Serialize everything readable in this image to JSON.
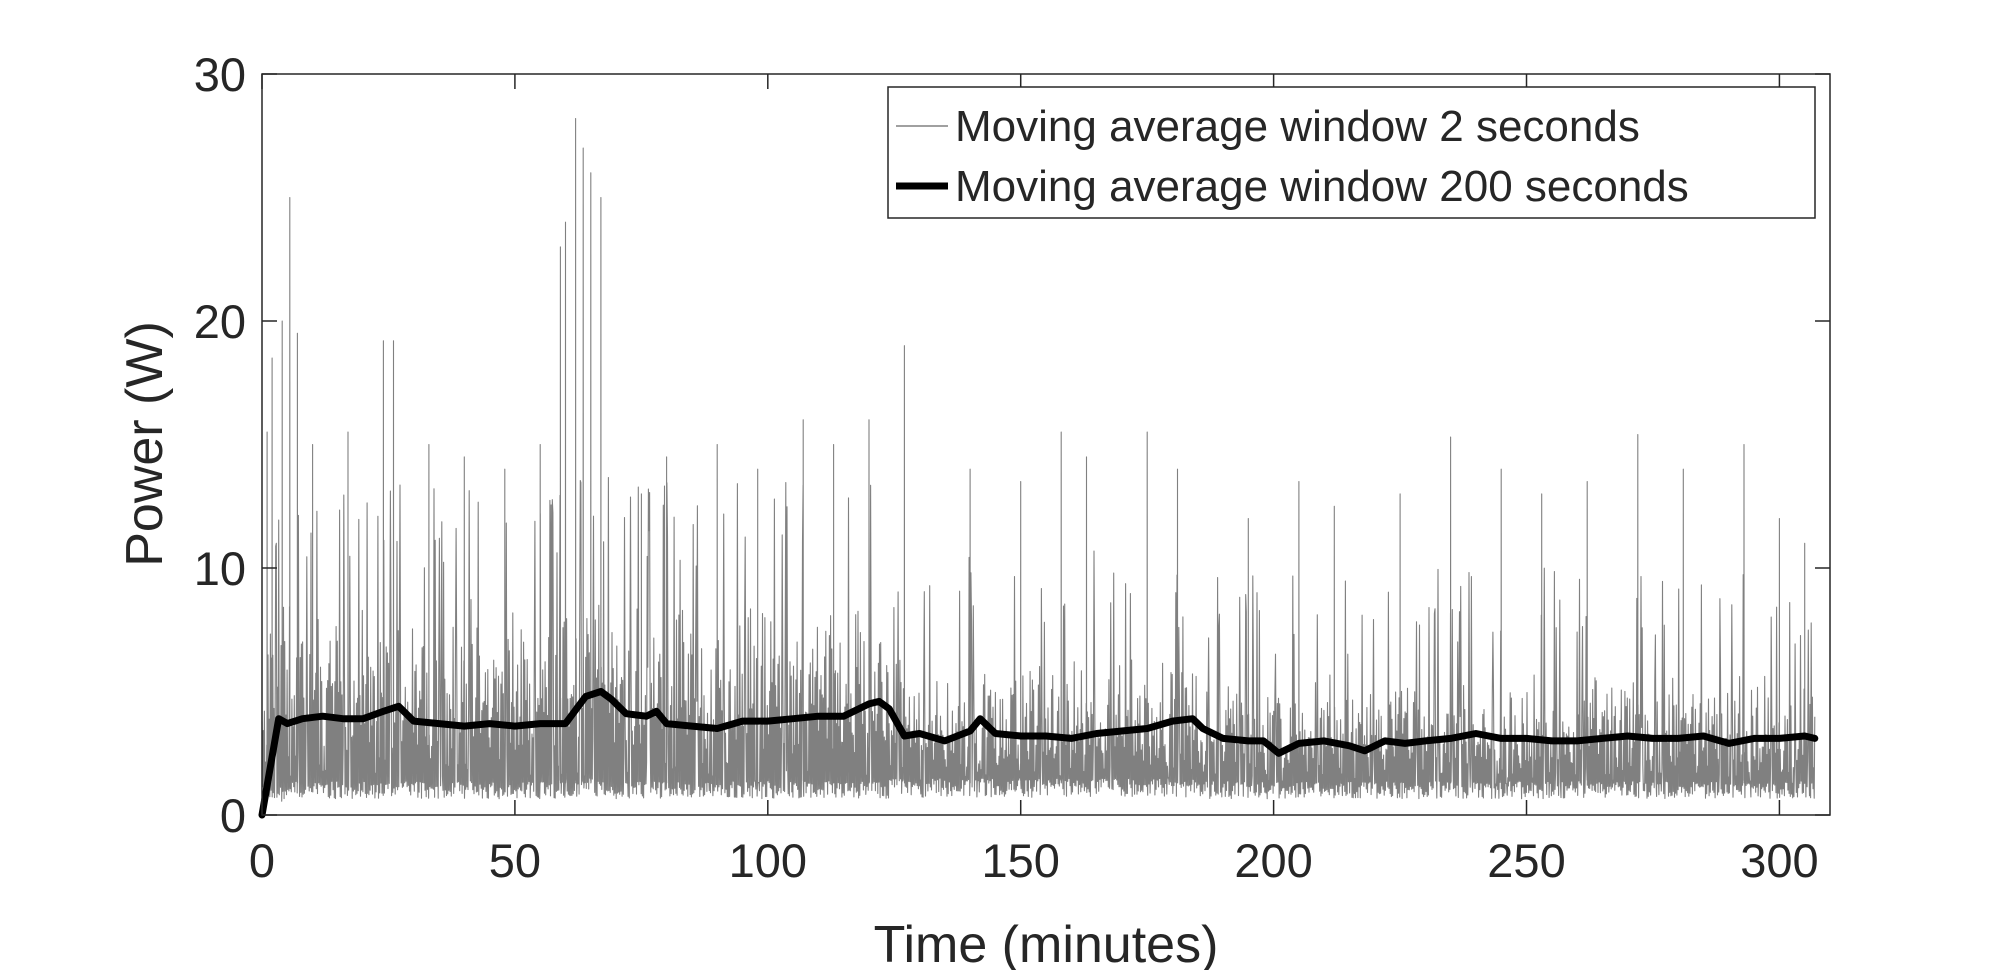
{
  "chart_data": {
    "type": "line",
    "title": "",
    "xlabel": "Time (minutes)",
    "ylabel": "Power (W)",
    "xlim": [
      0,
      310
    ],
    "ylim": [
      0,
      30
    ],
    "x_ticks": [
      0,
      50,
      100,
      150,
      200,
      250,
      300
    ],
    "y_ticks": [
      0,
      10,
      20,
      30
    ],
    "grid": false,
    "legend_position": "top-right",
    "series": [
      {
        "name": "Moving average window 2 seconds",
        "color": "#808080",
        "line_width": "thin",
        "style": "dense-noisy",
        "x_range": [
          0,
          307
        ],
        "segments": [
          {
            "x": [
              0,
              6
            ],
            "low": 1.0,
            "high": 10.0
          },
          {
            "x": [
              6,
              60
            ],
            "low": 1.2,
            "high": 10.0
          },
          {
            "x": [
              60,
              70
            ],
            "low": 1.3,
            "high": 11.0
          },
          {
            "x": [
              70,
              124
            ],
            "low": 1.2,
            "high": 10.0
          },
          {
            "x": [
              124,
              186
            ],
            "low": 1.3,
            "high": 7.5
          },
          {
            "x": [
              186,
              307
            ],
            "low": 1.2,
            "high": 6.5
          }
        ],
        "peaks": [
          {
            "x": 1,
            "y": 15.5
          },
          {
            "x": 2,
            "y": 18.5
          },
          {
            "x": 4,
            "y": 20.0
          },
          {
            "x": 5.5,
            "y": 25.0
          },
          {
            "x": 7,
            "y": 19.5
          },
          {
            "x": 10,
            "y": 15.0
          },
          {
            "x": 17,
            "y": 15.5
          },
          {
            "x": 24,
            "y": 19.2
          },
          {
            "x": 26,
            "y": 19.2
          },
          {
            "x": 33,
            "y": 15.0
          },
          {
            "x": 40,
            "y": 14.5
          },
          {
            "x": 48,
            "y": 14.0
          },
          {
            "x": 55,
            "y": 15.0
          },
          {
            "x": 59,
            "y": 23.0
          },
          {
            "x": 60,
            "y": 24.0
          },
          {
            "x": 62,
            "y": 28.2
          },
          {
            "x": 63.5,
            "y": 27.0
          },
          {
            "x": 65,
            "y": 26.0
          },
          {
            "x": 67,
            "y": 25.0
          },
          {
            "x": 75,
            "y": 13.0
          },
          {
            "x": 80,
            "y": 14.5
          },
          {
            "x": 90,
            "y": 15.0
          },
          {
            "x": 98,
            "y": 14.0
          },
          {
            "x": 107,
            "y": 16.0
          },
          {
            "x": 113,
            "y": 15.0
          },
          {
            "x": 120,
            "y": 16.0
          },
          {
            "x": 127,
            "y": 19.0
          },
          {
            "x": 140,
            "y": 14.0
          },
          {
            "x": 150,
            "y": 13.5
          },
          {
            "x": 158,
            "y": 15.5
          },
          {
            "x": 163,
            "y": 14.5
          },
          {
            "x": 175,
            "y": 15.5
          },
          {
            "x": 181,
            "y": 14.0
          },
          {
            "x": 195,
            "y": 12.0
          },
          {
            "x": 205,
            "y": 13.5
          },
          {
            "x": 212,
            "y": 12.5
          },
          {
            "x": 225,
            "y": 13.0
          },
          {
            "x": 235,
            "y": 15.3
          },
          {
            "x": 245,
            "y": 14.0
          },
          {
            "x": 253,
            "y": 13.0
          },
          {
            "x": 262,
            "y": 13.5
          },
          {
            "x": 272,
            "y": 15.4
          },
          {
            "x": 281,
            "y": 14.0
          },
          {
            "x": 293,
            "y": 15.0
          },
          {
            "x": 300,
            "y": 12.0
          },
          {
            "x": 305,
            "y": 11.0
          }
        ]
      },
      {
        "name": "Moving average window 200 seconds",
        "color": "#000000",
        "line_width": "thick",
        "x": [
          0,
          3.3,
          5,
          8,
          12,
          16,
          20,
          24,
          27,
          30,
          35,
          40,
          45,
          50,
          55,
          60,
          64,
          67,
          69,
          72,
          76,
          78,
          80,
          85,
          90,
          95,
          100,
          105,
          110,
          115,
          120,
          122,
          124,
          127,
          130,
          135,
          140,
          142,
          145,
          150,
          155,
          160,
          165,
          170,
          175,
          180,
          184,
          186,
          190,
          195,
          198,
          201,
          205,
          210,
          215,
          218,
          222,
          226,
          230,
          235,
          240,
          245,
          250,
          255,
          260,
          265,
          270,
          275,
          280,
          285,
          290,
          295,
          300,
          305,
          307
        ],
        "y": [
          0,
          3.9,
          3.7,
          3.9,
          4.0,
          3.9,
          3.9,
          4.2,
          4.4,
          3.8,
          3.7,
          3.6,
          3.7,
          3.6,
          3.7,
          3.7,
          4.8,
          5.0,
          4.7,
          4.1,
          4.0,
          4.2,
          3.7,
          3.6,
          3.5,
          3.8,
          3.8,
          3.9,
          4.0,
          4.0,
          4.5,
          4.6,
          4.3,
          3.2,
          3.3,
          3.0,
          3.4,
          3.9,
          3.3,
          3.2,
          3.2,
          3.1,
          3.3,
          3.4,
          3.5,
          3.8,
          3.9,
          3.5,
          3.1,
          3.0,
          3.0,
          2.5,
          2.9,
          3.0,
          2.8,
          2.6,
          3.0,
          2.9,
          3.0,
          3.1,
          3.3,
          3.1,
          3.1,
          3.0,
          3.0,
          3.1,
          3.2,
          3.1,
          3.1,
          3.2,
          2.9,
          3.1,
          3.1,
          3.2,
          3.1
        ]
      }
    ]
  }
}
